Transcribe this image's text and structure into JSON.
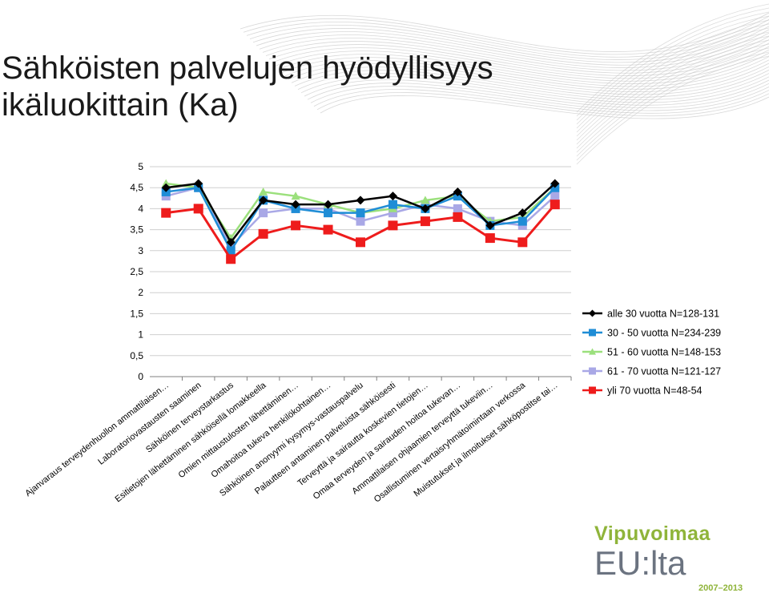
{
  "title": {
    "line1": "Sähköisten palvelujen hyödyllisyys",
    "line2": "ikäluokittain (Ka)"
  },
  "logo": {
    "top": "Vipuvoimaa",
    "main": "EU:lta",
    "years": "2007–2013"
  },
  "chart_data": {
    "type": "line",
    "ylim": [
      0,
      5
    ],
    "yticks": [
      "0",
      "0,5",
      "1",
      "1,5",
      "2",
      "2,5",
      "3",
      "3,5",
      "4",
      "4,5",
      "5"
    ],
    "grid": true,
    "legend_position": "right",
    "categories": [
      "Ajanvaraus terveydenhuollon ammattilaisen…",
      "Laboratoriovastausten saaminen",
      "Sähköinen terveystarkastus",
      "Esitietojen lähettäminen sähköisellä lomakkeella",
      "Omien mittaustulosten lähettäminen…",
      "Omahoitoa tukeva henkilökohtainen…",
      "Sähköinen anonyymi kysymys-vastauspalvelu",
      "Palautteen antaminen palveluista sähköisesti",
      "Terveyttä ja sairautta koskevien tietojen…",
      "Omaa terveyden ja sairauden hoitoa tukevan…",
      "Ammattilaisen ohjaamien terveyttä tukeviin…",
      "Osallistuminen vertaisryhmätoimintaan verkossa",
      "Muistutukset ja ilmoitukset sähköpostitse tai…"
    ],
    "series": [
      {
        "name": "alle 30 vuotta N=128-131",
        "color": "#000000",
        "marker": "diamond",
        "values": [
          4.5,
          4.6,
          3.2,
          4.2,
          4.1,
          4.1,
          4.2,
          4.3,
          4.0,
          4.4,
          3.6,
          3.9,
          4.6
        ]
      },
      {
        "name": "30 - 50 vuotta N=234-239",
        "color": "#1f8dd6",
        "marker": "square",
        "values": [
          4.4,
          4.5,
          3.0,
          4.2,
          4.0,
          3.9,
          3.9,
          4.1,
          4.0,
          4.3,
          3.6,
          3.7,
          4.5
        ]
      },
      {
        "name": "51 - 60 vuotta N=148-153",
        "color": "#9be07c",
        "marker": "triangle",
        "values": [
          4.6,
          4.5,
          3.3,
          4.4,
          4.3,
          4.1,
          3.9,
          4.0,
          4.2,
          4.3,
          3.7,
          3.8,
          4.5
        ]
      },
      {
        "name": "61 - 70 vuotta N=121-127",
        "color": "#a9a8e6",
        "marker": "square",
        "values": [
          4.3,
          4.5,
          3.1,
          3.9,
          4.0,
          4.0,
          3.7,
          3.9,
          4.1,
          4.0,
          3.7,
          3.6,
          4.3
        ]
      },
      {
        "name": "yli 70 vuotta N=48-54",
        "color": "#ee1c1c",
        "marker": "square",
        "values": [
          3.9,
          4.0,
          2.8,
          3.4,
          3.6,
          3.5,
          3.2,
          3.6,
          3.7,
          3.8,
          3.3,
          3.2,
          4.1
        ]
      }
    ]
  }
}
